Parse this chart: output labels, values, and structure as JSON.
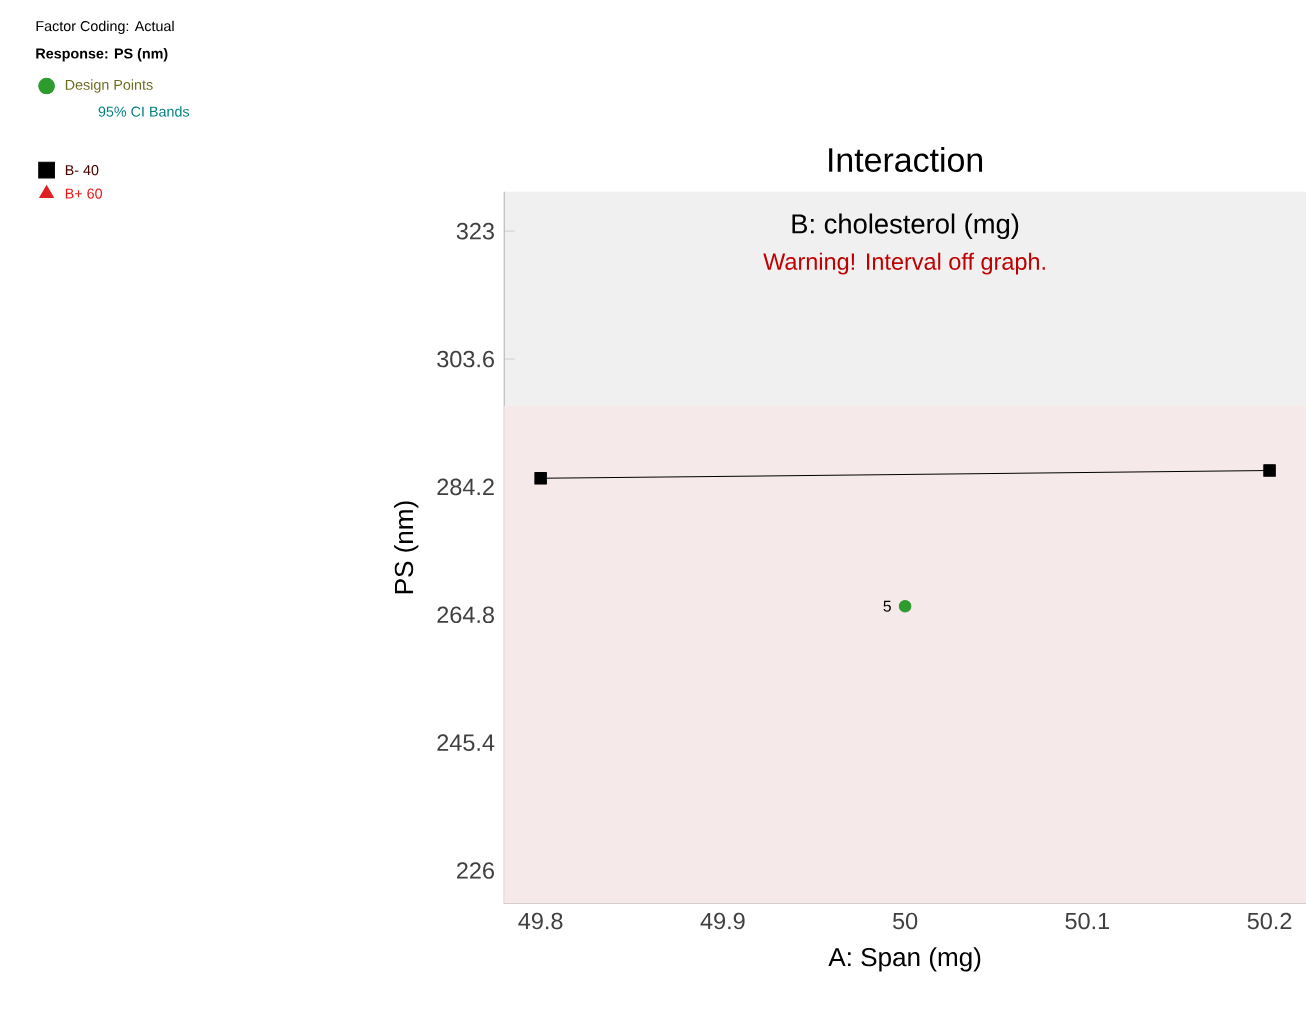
{
  "chart_data": {
    "type": "line",
    "title": "Interaction",
    "subtitle": "B: cholesterol (mg)",
    "xlabel": "A: Span (mg)",
    "ylabel": "PS (nm)",
    "xlim": [
      49.78,
      50.22
    ],
    "xticks": [
      49.8,
      49.9,
      50,
      50.1,
      50.2
    ],
    "ylim": [
      221,
      329
    ],
    "yticks": [
      226,
      245.4,
      264.8,
      284.2,
      303.6,
      323
    ],
    "grid": false,
    "legend": "top left",
    "series": [
      {
        "name": "B- 40",
        "color": "#000000",
        "marker": "square",
        "x": [
          49.8,
          50.2
        ],
        "values": [
          285.5,
          286.7
        ]
      },
      {
        "name": "B+ 60",
        "color": "#e02020",
        "marker": "triangle",
        "values": [
          null,
          null
        ]
      },
      {
        "name": "Design Points",
        "type": "scatter",
        "color": "#2e9b2e",
        "marker": "circle",
        "x": [
          50
        ],
        "values": [
          266.1
        ]
      }
    ],
    "bands": [
      {
        "axis": "y",
        "from": 221,
        "to": 296.5,
        "color": "#f6e9e9"
      }
    ],
    "annotations": [
      "Factor Coding: Actual",
      "Response: PS (nm)",
      "95% CI Bands",
      "Warning! Interval off graph.",
      {
        "text": "5",
        "x": 50,
        "y": 266.1
      }
    ]
  }
}
